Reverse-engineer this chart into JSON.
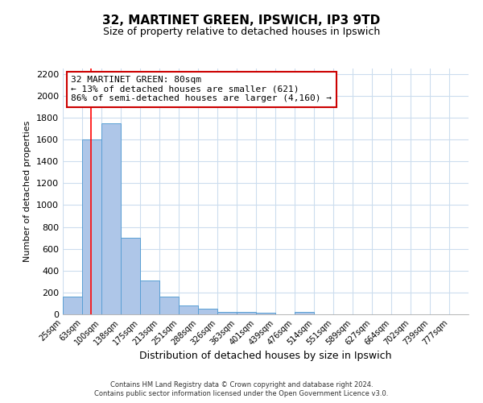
{
  "title": "32, MARTINET GREEN, IPSWICH, IP3 9TD",
  "subtitle": "Size of property relative to detached houses in Ipswich",
  "xlabel": "Distribution of detached houses by size in Ipswich",
  "ylabel": "Number of detached properties",
  "bar_labels": [
    "25sqm",
    "63sqm",
    "100sqm",
    "138sqm",
    "175sqm",
    "213sqm",
    "251sqm",
    "288sqm",
    "326sqm",
    "363sqm",
    "401sqm",
    "439sqm",
    "476sqm",
    "514sqm",
    "551sqm",
    "589sqm",
    "627sqm",
    "664sqm",
    "702sqm",
    "739sqm",
    "777sqm"
  ],
  "bar_values": [
    160,
    1600,
    1750,
    700,
    310,
    160,
    80,
    50,
    25,
    20,
    15,
    0,
    20,
    0,
    0,
    0,
    0,
    0,
    0,
    0,
    0
  ],
  "bin_edges": [
    25,
    63,
    100,
    138,
    175,
    213,
    251,
    288,
    326,
    363,
    401,
    439,
    476,
    514,
    551,
    589,
    627,
    664,
    702,
    739,
    777,
    815
  ],
  "bar_color": "#aec6e8",
  "bar_edge_color": "#5a9fd4",
  "red_line_x": 80,
  "annotation_line1": "32 MARTINET GREEN: 80sqm",
  "annotation_line2": "← 13% of detached houses are smaller (621)",
  "annotation_line3": "86% of semi-detached houses are larger (4,160) →",
  "annotation_box_color": "#ffffff",
  "annotation_box_edge_color": "#cc0000",
  "ylim": [
    0,
    2250
  ],
  "yticks": [
    0,
    200,
    400,
    600,
    800,
    1000,
    1200,
    1400,
    1600,
    1800,
    2000,
    2200
  ],
  "footer_line1": "Contains HM Land Registry data © Crown copyright and database right 2024.",
  "footer_line2": "Contains public sector information licensed under the Open Government Licence v3.0.",
  "background_color": "#ffffff",
  "grid_color": "#ccddee"
}
